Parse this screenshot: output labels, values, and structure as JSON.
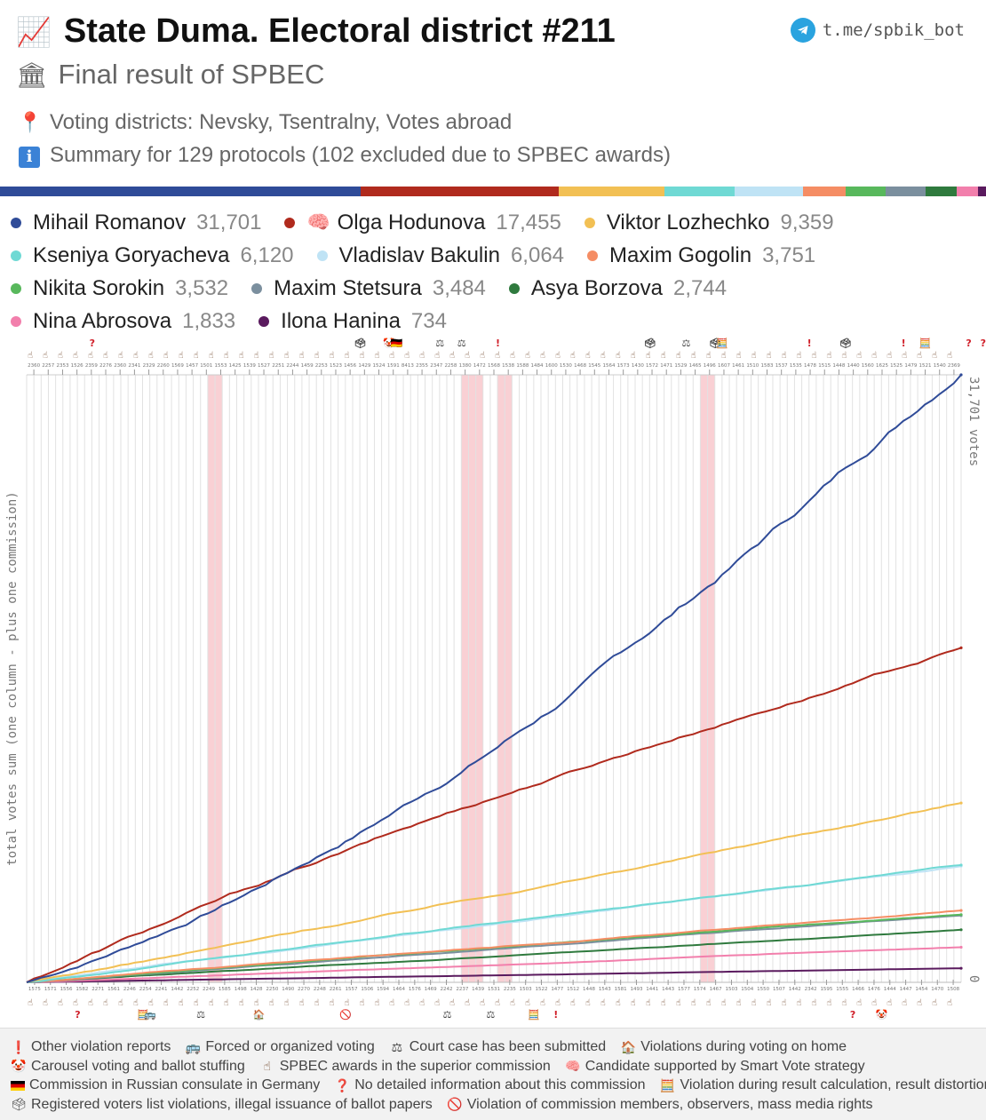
{
  "header": {
    "title": "State Duma. Electoral district #211",
    "title_icon": "chart-increasing-icon",
    "subtitle": "Final result of SPBEC",
    "subtitle_icon": "classical-building-icon",
    "telegram": "t.me/spbik_bot",
    "districts": "Voting districts: Nevsky, Tsentralny, Votes abroad",
    "summary": "Summary for 129 protocols (102 excluded due to SPBEC awards)"
  },
  "colors": {
    "Romanov": "#2f4b98",
    "Hodunova": "#b02a1d",
    "Lozhechko": "#f2c054",
    "Goryacheva": "#6fd9d4",
    "Bakulin": "#bfe3f5",
    "Gogolin": "#f58d64",
    "Sorokin": "#58b85c",
    "Stetsura": "#7b8f9e",
    "Borzova": "#2f7a3e",
    "Abrosova": "#f27fac",
    "Hanina": "#5a1a5e"
  },
  "candidates": [
    {
      "key": "Romanov",
      "name": "Mihail Romanov",
      "votes": "31,701",
      "total": 31701,
      "smart_vote": false
    },
    {
      "key": "Hodunova",
      "name": "Olga Hodunova",
      "votes": "17,455",
      "total": 17455,
      "smart_vote": true
    },
    {
      "key": "Lozhechko",
      "name": "Viktor Lozhechko",
      "votes": "9,359",
      "total": 9359,
      "smart_vote": false
    },
    {
      "key": "Goryacheva",
      "name": "Kseniya Goryacheva",
      "votes": "6,120",
      "total": 6120,
      "smart_vote": false
    },
    {
      "key": "Bakulin",
      "name": "Vladislav Bakulin",
      "votes": "6,064",
      "total": 6064,
      "smart_vote": false
    },
    {
      "key": "Gogolin",
      "name": "Maxim Gogolin",
      "votes": "3,751",
      "total": 3751,
      "smart_vote": false
    },
    {
      "key": "Sorokin",
      "name": "Nikita Sorokin",
      "votes": "3,532",
      "total": 3532,
      "smart_vote": false
    },
    {
      "key": "Stetsura",
      "name": "Maxim Stetsura",
      "votes": "3,484",
      "total": 3484,
      "smart_vote": false
    },
    {
      "key": "Borzova",
      "name": "Asya Borzova",
      "votes": "2,744",
      "total": 2744,
      "smart_vote": false
    },
    {
      "key": "Abrosova",
      "name": "Nina Abrosova",
      "votes": "1,833",
      "total": 1833,
      "smart_vote": false
    },
    {
      "key": "Hanina",
      "name": "Ilona Hanina",
      "votes": "734",
      "total": 734,
      "smart_vote": false
    }
  ],
  "legend_rows": [
    [
      0,
      1,
      2
    ],
    [
      3,
      4,
      5
    ],
    [
      6,
      7,
      8
    ],
    [
      9,
      10
    ]
  ],
  "chart_data": {
    "type": "line",
    "ylabel": "total votes sum (one column - plus one commission)",
    "y_max_label": "31,701 votes",
    "y_min_label": "0",
    "ylim": [
      0,
      31701
    ],
    "n_columns": 129,
    "highlighted_columns": [
      [
        25,
        27
      ],
      [
        60,
        63
      ],
      [
        65,
        67
      ],
      [
        93,
        95
      ]
    ],
    "top_ticks": [
      "2360",
      "2257",
      "2353",
      "1526",
      "2359",
      "2276",
      "2360",
      "2341",
      "2329",
      "2260",
      "1569",
      "1457",
      "1501",
      "1553",
      "1425",
      "1539",
      "1527",
      "2251",
      "2244",
      "1459",
      "2253",
      "1523",
      "1456",
      "1429",
      "1524",
      "1591",
      "8413",
      "2355",
      "2347",
      "2258",
      "1380",
      "1472",
      "1568",
      "1538",
      "1588",
      "1484",
      "1600",
      "1530",
      "1468",
      "1545",
      "1564",
      "1573",
      "1430",
      "1572",
      "1471",
      "1529",
      "1465",
      "1496",
      "1607",
      "1461",
      "1510",
      "1583",
      "1537",
      "1535",
      "1478",
      "1515",
      "1448",
      "1440",
      "1560",
      "1625",
      "1525",
      "1479",
      "1521",
      "1540",
      "2369"
    ],
    "bottom_ticks": [
      "1575",
      "1571",
      "1556",
      "1582",
      "2271",
      "1561",
      "2246",
      "2254",
      "2241",
      "1442",
      "2252",
      "2249",
      "1585",
      "1498",
      "1428",
      "2250",
      "1490",
      "2270",
      "2248",
      "2261",
      "1557",
      "1506",
      "1594",
      "1464",
      "1576",
      "1469",
      "2242",
      "2237",
      "1439",
      "1531",
      "2235",
      "1503",
      "1522",
      "1477",
      "1512",
      "1448",
      "1543",
      "1581",
      "1493",
      "1441",
      "1443",
      "1577",
      "1574",
      "1467",
      "1503",
      "1504",
      "1550",
      "1507",
      "1442",
      "2342",
      "1595",
      "1555",
      "1466",
      "1476",
      "1444",
      "1447",
      "1454",
      "1470",
      "1508"
    ],
    "markers_top": [
      {
        "col": 11,
        "icon": "question-icon",
        "glyph": "?"
      },
      {
        "col": 48,
        "icon": "registered-voters-icon",
        "glyph": "🗳"
      },
      {
        "col": 52,
        "icon": "carousel-icon",
        "glyph": "🤡"
      },
      {
        "col": 53,
        "icon": "flag-de-icon",
        "glyph": "🇩🇪"
      },
      {
        "col": 59,
        "icon": "court-case-icon",
        "glyph": "⚖"
      },
      {
        "col": 62,
        "icon": "court-case-icon",
        "glyph": "⚖"
      },
      {
        "col": 67,
        "icon": "exclamation-icon",
        "glyph": "!"
      },
      {
        "col": 88,
        "icon": "registered-voters-icon",
        "glyph": "🗳"
      },
      {
        "col": 93,
        "icon": "court-case-icon",
        "glyph": "⚖"
      },
      {
        "col": 97,
        "icon": "registered-voters-icon",
        "glyph": "🗳"
      },
      {
        "col": 98,
        "icon": "abacus-icon",
        "glyph": "🧮"
      },
      {
        "col": 110,
        "icon": "exclamation-icon",
        "glyph": "!"
      },
      {
        "col": 115,
        "icon": "registered-voters-icon",
        "glyph": "🗳"
      },
      {
        "col": 123,
        "icon": "exclamation-icon",
        "glyph": "!"
      },
      {
        "col": 126,
        "icon": "abacus-icon",
        "glyph": "🧮"
      },
      {
        "col": 132,
        "icon": "question-icon",
        "glyph": "?"
      },
      {
        "col": 134,
        "icon": "question-icon",
        "glyph": "?"
      }
    ],
    "markers_bottom": [
      {
        "col": 9,
        "icon": "question-icon",
        "glyph": "?"
      },
      {
        "col": 18,
        "icon": "abacus-icon",
        "glyph": "🧮"
      },
      {
        "col": 19,
        "icon": "bus-icon",
        "glyph": "🚌"
      },
      {
        "col": 26,
        "icon": "court-case-icon",
        "glyph": "⚖"
      },
      {
        "col": 34,
        "icon": "home-voting-icon",
        "glyph": "🏠"
      },
      {
        "col": 46,
        "icon": "no-entry-icon",
        "glyph": "🚫"
      },
      {
        "col": 60,
        "icon": "court-case-icon",
        "glyph": "⚖"
      },
      {
        "col": 66,
        "icon": "court-case-icon",
        "glyph": "⚖"
      },
      {
        "col": 72,
        "icon": "abacus-icon",
        "glyph": "🧮"
      },
      {
        "col": 75,
        "icon": "exclamation-icon",
        "glyph": "!"
      },
      {
        "col": 116,
        "icon": "question-icon",
        "glyph": "?"
      },
      {
        "col": 120,
        "icon": "carousel-icon",
        "glyph": "🤡"
      }
    ]
  },
  "footer": [
    [
      {
        "icon": "exclamation-icon",
        "glyph": "❗",
        "label": "Other violation reports"
      },
      {
        "icon": "bus-icon",
        "glyph": "🚌",
        "label": "Forced or organized voting"
      },
      {
        "icon": "court-case-icon",
        "glyph": "⚖",
        "label": "Court case has been submitted"
      },
      {
        "icon": "home-voting-icon",
        "glyph": "🏠",
        "label": "Violations during voting on home"
      }
    ],
    [
      {
        "icon": "carousel-icon",
        "glyph": "🤡",
        "label": "Carousel voting and ballot stuffing"
      },
      {
        "icon": "award-hand-icon",
        "glyph": "☝",
        "label": "SPBEC awards in the superior commission"
      },
      {
        "icon": "brain-icon",
        "glyph": "🧠",
        "label": "Candidate supported by Smart Vote strategy"
      }
    ],
    [
      {
        "icon": "flag-de-icon",
        "glyph": "",
        "label": "Commission in Russian consulate in Germany"
      },
      {
        "icon": "question-icon",
        "glyph": "❓",
        "label": "No detailed information about this commission"
      },
      {
        "icon": "abacus-icon",
        "glyph": "🧮",
        "label": "Violation during result calculation, result distortion"
      }
    ],
    [
      {
        "icon": "registered-voters-icon",
        "glyph": "🗳",
        "label": "Registered voters list violations, illegal issuance of ballot papers"
      },
      {
        "icon": "no-entry-icon",
        "glyph": "🚫",
        "label": "Violation of commission members, observers, mass media rights"
      }
    ]
  ]
}
